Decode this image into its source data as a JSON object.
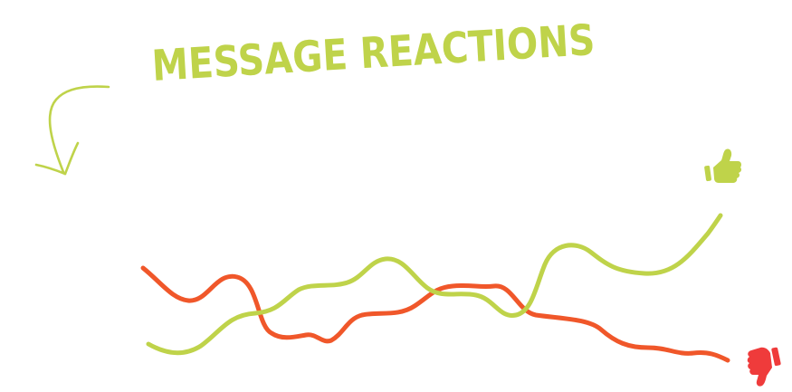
{
  "title": "MESSAGE REACTIONS",
  "colors": {
    "positive": "#bfd34a",
    "negative": "#f0572a",
    "dislike_icon": "#ef3b3b",
    "background": "#ffffff"
  },
  "icons": {
    "like": "thumbs-up-icon",
    "dislike": "thumbs-down-icon",
    "pointer": "curved-arrow-icon"
  },
  "lines": [
    {
      "role": "positive",
      "color": "#bfd34a"
    },
    {
      "role": "negative",
      "color": "#f0572a"
    }
  ]
}
